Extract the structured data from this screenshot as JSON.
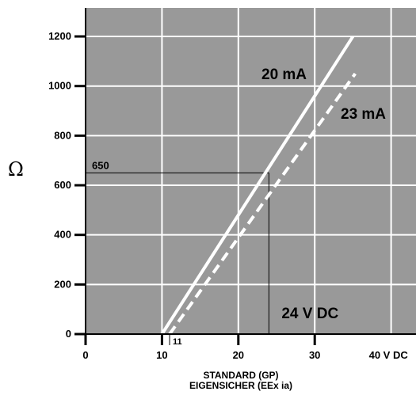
{
  "chart_data": {
    "type": "line",
    "ylabel": "Ω",
    "xlabel_lines": [
      "STANDARD (GP)",
      "EIGENSICHER (EEx ia)"
    ],
    "xlim": [
      0,
      40
    ],
    "ylim": [
      0,
      1200
    ],
    "x_ticks": [
      {
        "value": 0,
        "label": "0"
      },
      {
        "value": 10,
        "label": "10"
      },
      {
        "value": 20,
        "label": "20"
      },
      {
        "value": 30,
        "label": "30"
      },
      {
        "value": 40,
        "label": "40 V DC"
      }
    ],
    "y_ticks": [
      {
        "value": 0,
        "label": "0"
      },
      {
        "value": 200,
        "label": "200"
      },
      {
        "value": 400,
        "label": "400"
      },
      {
        "value": 600,
        "label": "600"
      },
      {
        "value": 800,
        "label": "800"
      },
      {
        "value": 1000,
        "label": "1000"
      },
      {
        "value": 1200,
        "label": "1200"
      }
    ],
    "grid": true,
    "background_color": "#999999",
    "series": [
      {
        "name": "20 mA",
        "style": "solid",
        "color": "#ffffff",
        "x": [
          10,
          35
        ],
        "y": [
          0,
          1200
        ]
      },
      {
        "name": "23 mA",
        "style": "dashed",
        "color": "#ffffff",
        "x": [
          11,
          35.3
        ],
        "y": [
          0,
          1050
        ]
      }
    ],
    "annotations": [
      {
        "text": "650",
        "x": 0,
        "y": 650
      },
      {
        "text": "11",
        "x": 11,
        "y": 0
      },
      {
        "text": "24 V DC",
        "x": 24,
        "y": 650
      }
    ]
  }
}
